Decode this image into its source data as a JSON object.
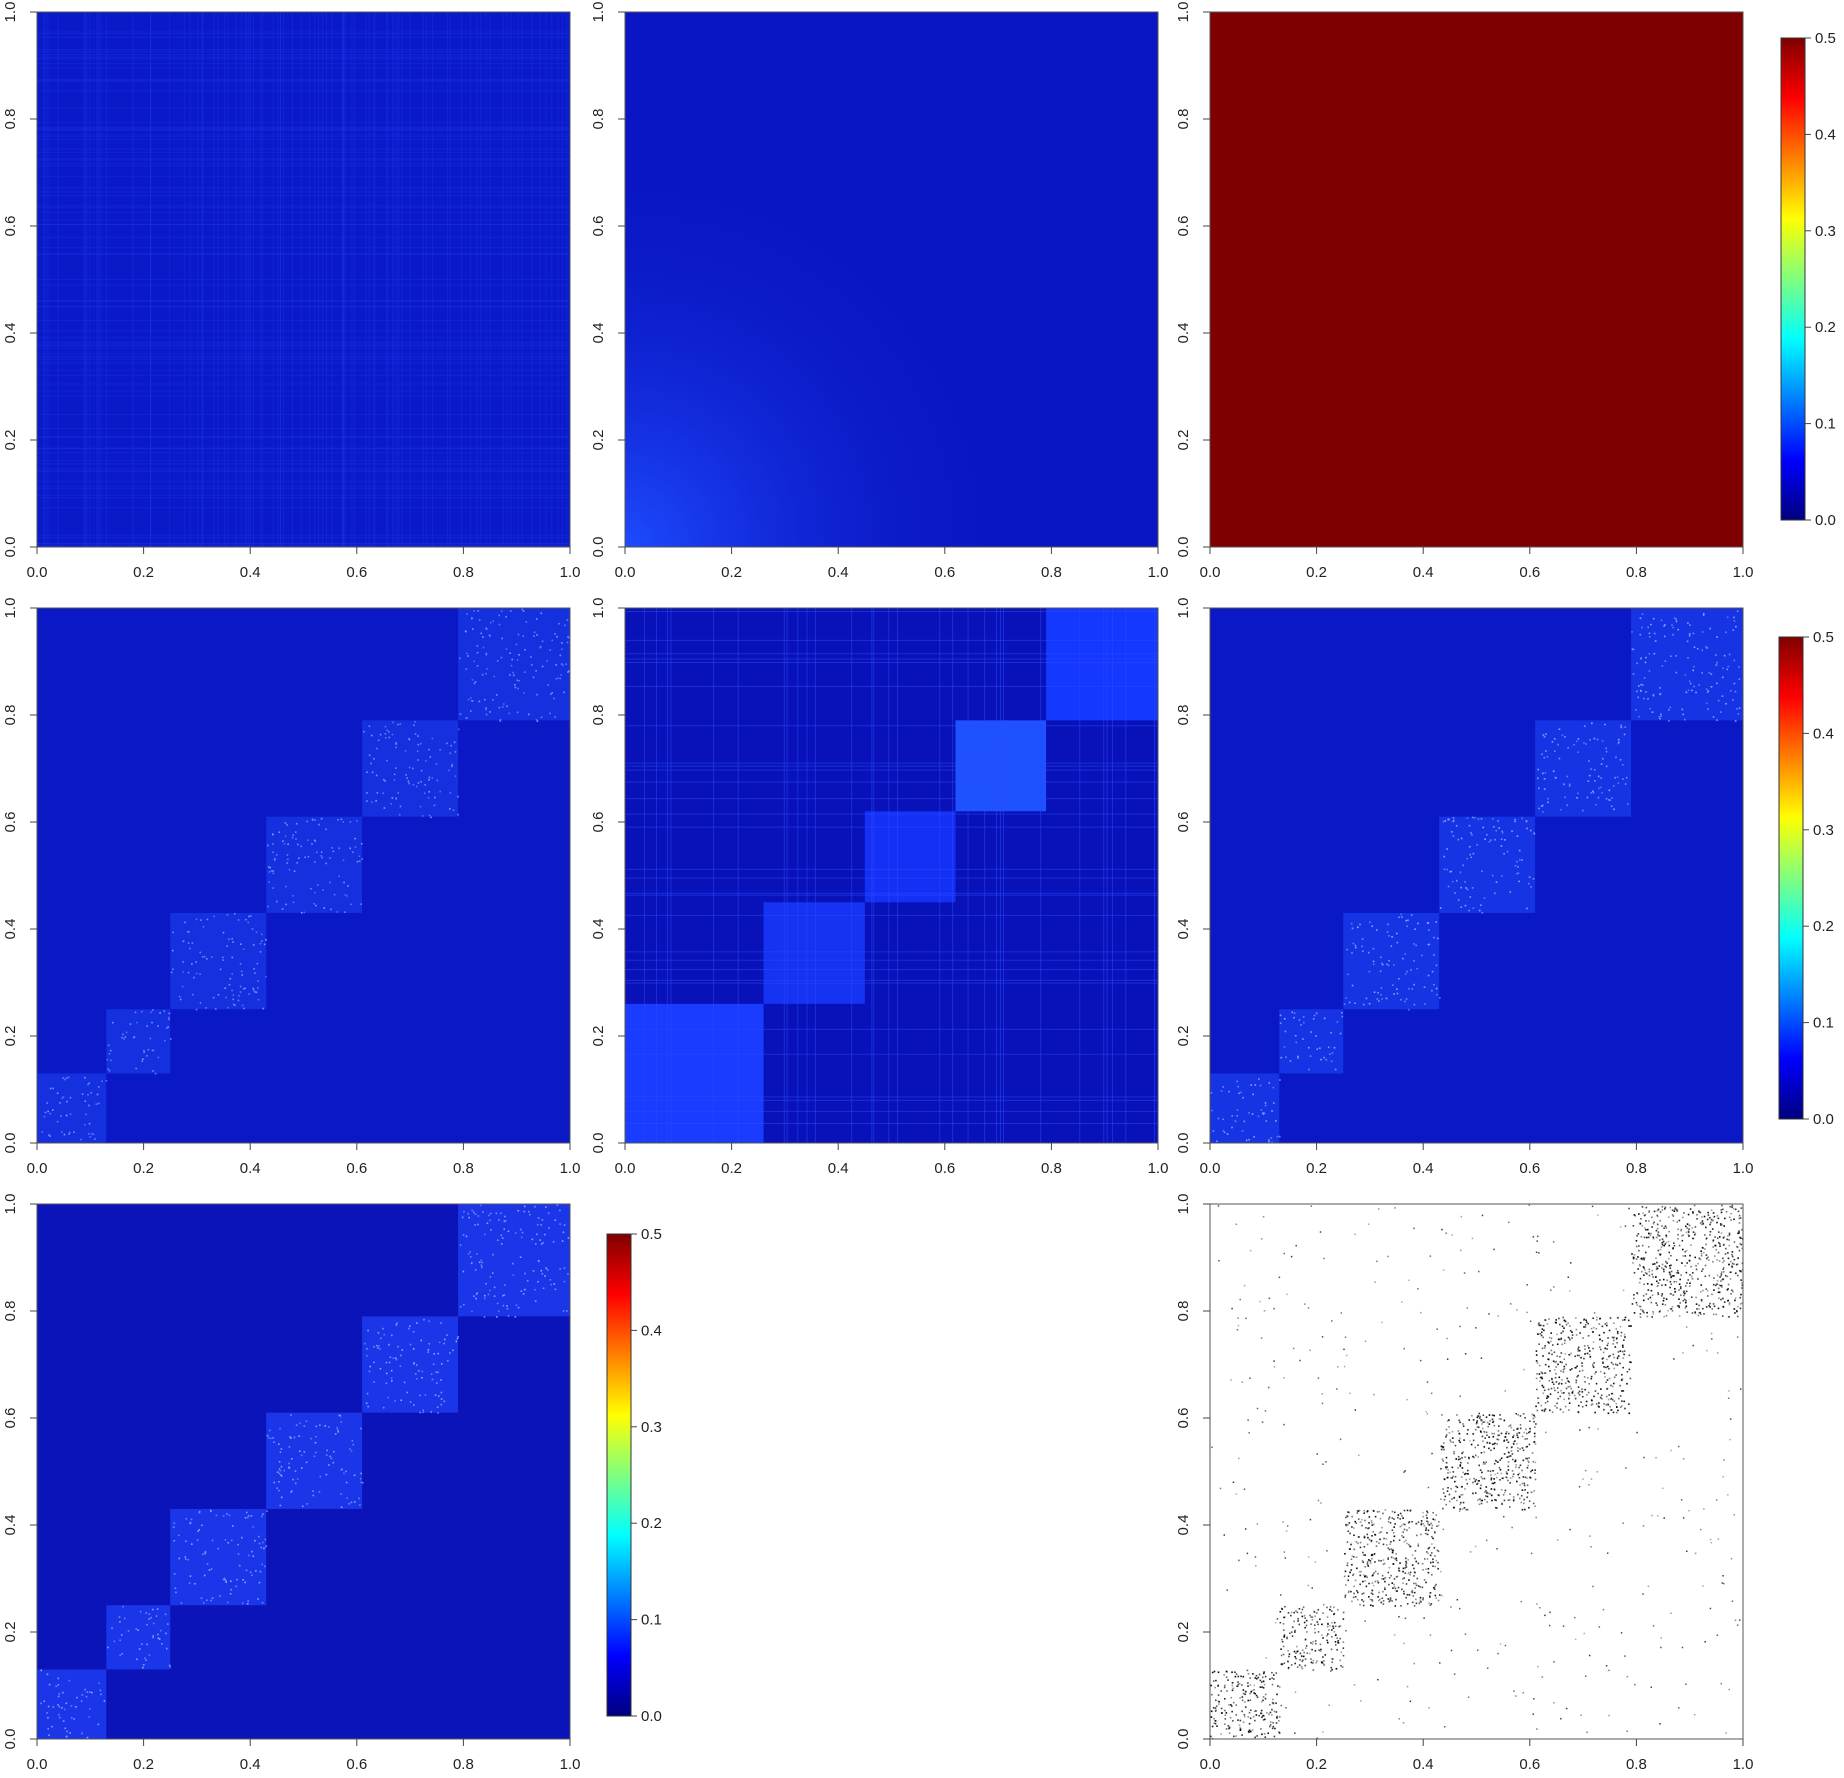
{
  "chart_data": [
    {
      "type": "heatmap",
      "style": "uniform-noise",
      "fill_color": "#0A1AC9",
      "texture_color": "#1E3AF0",
      "x_ticks": [
        "0.0",
        "0.2",
        "0.4",
        "0.6",
        "0.8",
        "1.0"
      ],
      "y_ticks": [
        "0.0",
        "0.2",
        "0.4",
        "0.6",
        "0.8",
        "1.0"
      ],
      "xlim": [
        0,
        1
      ],
      "ylim": [
        0,
        1
      ]
    },
    {
      "type": "heatmap",
      "style": "corner-gradient",
      "fill_color": "#0A16C4",
      "corner_color": "#1E4BFF",
      "x_ticks": [
        "0.0",
        "0.2",
        "0.4",
        "0.6",
        "0.8",
        "1.0"
      ],
      "y_ticks": [
        "0.0",
        "0.2",
        "0.4",
        "0.6",
        "0.8",
        "1.0"
      ],
      "xlim": [
        0,
        1
      ],
      "ylim": [
        0,
        1
      ]
    },
    {
      "type": "heatmap",
      "style": "solid",
      "fill_color": "#7F0000",
      "x_ticks": [
        "0.0",
        "0.2",
        "0.4",
        "0.6",
        "0.8",
        "1.0"
      ],
      "y_ticks": [
        "0.0",
        "0.2",
        "0.4",
        "0.6",
        "0.8",
        "1.0"
      ],
      "xlim": [
        0,
        1
      ],
      "ylim": [
        0,
        1
      ]
    },
    {
      "type": "heatmap",
      "style": "blocks",
      "fill_color": "#0A18C6",
      "block_color": "#1530DE",
      "texture_color": "#7E9BFF",
      "blocks": [
        [
          0.0,
          0.13
        ],
        [
          0.13,
          0.25
        ],
        [
          0.25,
          0.43
        ],
        [
          0.43,
          0.61
        ],
        [
          0.61,
          0.79
        ],
        [
          0.79,
          1.0
        ]
      ],
      "x_ticks": [
        "0.0",
        "0.2",
        "0.4",
        "0.6",
        "0.8",
        "1.0"
      ],
      "y_ticks": [
        "0.0",
        "0.2",
        "0.4",
        "0.6",
        "0.8",
        "1.0"
      ],
      "xlim": [
        0,
        1
      ],
      "ylim": [
        0,
        1
      ]
    },
    {
      "type": "heatmap",
      "style": "solid-blocks",
      "fill_color": "#0812B8",
      "block_colors": [
        "#1A3CFF",
        "#1632F2",
        "#1530F5",
        "#1F52FF",
        "#1538FF"
      ],
      "blocks": [
        [
          0.0,
          0.26
        ],
        [
          0.26,
          0.45
        ],
        [
          0.45,
          0.62
        ],
        [
          0.62,
          0.79
        ],
        [
          0.79,
          1.0
        ]
      ],
      "x_ticks": [
        "0.0",
        "0.2",
        "0.4",
        "0.6",
        "0.8",
        "1.0"
      ],
      "y_ticks": [
        "0.0",
        "0.2",
        "0.4",
        "0.6",
        "0.8",
        "1.0"
      ],
      "xlim": [
        0,
        1
      ],
      "ylim": [
        0,
        1
      ]
    },
    {
      "type": "heatmap",
      "style": "blocks",
      "fill_color": "#0A18C6",
      "block_color": "#1634E4",
      "texture_color": "#8FA8FF",
      "blocks": [
        [
          0.0,
          0.13
        ],
        [
          0.13,
          0.25
        ],
        [
          0.25,
          0.43
        ],
        [
          0.43,
          0.61
        ],
        [
          0.61,
          0.79
        ],
        [
          0.79,
          1.0
        ]
      ],
      "x_ticks": [
        "0.0",
        "0.2",
        "0.4",
        "0.6",
        "0.8",
        "1.0"
      ],
      "y_ticks": [
        "0.0",
        "0.2",
        "0.4",
        "0.6",
        "0.8",
        "1.0"
      ],
      "xlim": [
        0,
        1
      ],
      "ylim": [
        0,
        1
      ]
    },
    {
      "type": "heatmap",
      "style": "blocks",
      "fill_color": "#0A14B8",
      "block_color": "#1A36E8",
      "texture_color": "#8FA8FF",
      "blocks": [
        [
          0.0,
          0.13
        ],
        [
          0.13,
          0.25
        ],
        [
          0.25,
          0.43
        ],
        [
          0.43,
          0.61
        ],
        [
          0.61,
          0.79
        ],
        [
          0.79,
          1.0
        ]
      ],
      "x_ticks": [
        "0.0",
        "0.2",
        "0.4",
        "0.6",
        "0.8",
        "1.0"
      ],
      "y_ticks": [
        "0.0",
        "0.2",
        "0.4",
        "0.6",
        "0.8",
        "1.0"
      ],
      "xlim": [
        0,
        1
      ],
      "ylim": [
        0,
        1
      ]
    },
    {
      "type": "scatter",
      "style": "adjacency-dots",
      "point_color": "#000000",
      "blocks": [
        [
          0.0,
          0.13
        ],
        [
          0.13,
          0.25
        ],
        [
          0.25,
          0.43
        ],
        [
          0.43,
          0.61
        ],
        [
          0.61,
          0.79
        ],
        [
          0.79,
          1.0
        ]
      ],
      "x_ticks": [
        "0.0",
        "0.2",
        "0.4",
        "0.6",
        "0.8",
        "1.0"
      ],
      "y_ticks": [
        "0.0",
        "0.2",
        "0.4",
        "0.6",
        "0.8",
        "1.0"
      ],
      "xlim": [
        0,
        1
      ],
      "ylim": [
        0,
        1
      ]
    }
  ],
  "colorbars": [
    {
      "ticks": [
        "0.0",
        "0.1",
        "0.2",
        "0.3",
        "0.4",
        "0.5"
      ],
      "range": [
        0,
        0.5
      ],
      "colors": [
        "#00007F",
        "#0000FF",
        "#007FFF",
        "#00FFFF",
        "#7FFF7F",
        "#FFFF00",
        "#FF7F00",
        "#FF0000",
        "#7F0000"
      ]
    },
    {
      "ticks": [
        "0.0",
        "0.1",
        "0.2",
        "0.3",
        "0.4",
        "0.5"
      ],
      "range": [
        0,
        0.5
      ],
      "colors": [
        "#00007F",
        "#0000FF",
        "#007FFF",
        "#00FFFF",
        "#7FFF7F",
        "#FFFF00",
        "#FF7F00",
        "#FF0000",
        "#7F0000"
      ]
    },
    {
      "ticks": [
        "0.0",
        "0.1",
        "0.2",
        "0.3",
        "0.4",
        "0.5"
      ],
      "range": [
        0,
        0.5
      ],
      "colors": [
        "#00007F",
        "#0000FF",
        "#007FFF",
        "#00FFFF",
        "#7FFF7F",
        "#FFFF00",
        "#FF7F00",
        "#FF0000",
        "#7F0000"
      ]
    }
  ]
}
